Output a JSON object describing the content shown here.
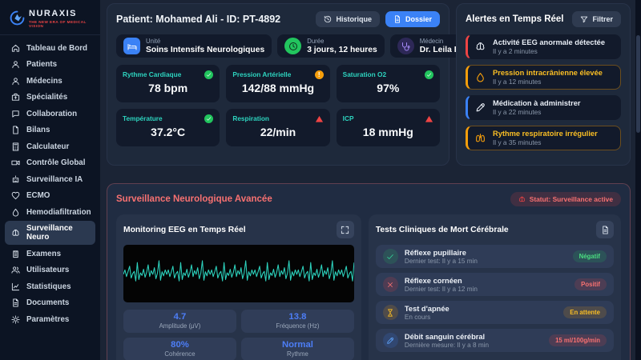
{
  "brand": {
    "name": "NURAXIS",
    "tagline": "THE NEW ERA OF MEDICAL VISION"
  },
  "sidebar": {
    "items": [
      {
        "label": "Tableau de Bord",
        "icon": "home",
        "active": false
      },
      {
        "label": "Patients",
        "icon": "user",
        "active": false
      },
      {
        "label": "Médecins",
        "icon": "user",
        "active": false
      },
      {
        "label": "Spécialités",
        "icon": "kit",
        "active": false
      },
      {
        "label": "Collaboration",
        "icon": "chat",
        "active": false
      },
      {
        "label": "Bilans",
        "icon": "file",
        "active": false
      },
      {
        "label": "Calculateur",
        "icon": "calculator",
        "active": false
      },
      {
        "label": "Contrôle Global",
        "icon": "video",
        "active": false
      },
      {
        "label": "Surveillance IA",
        "icon": "robot",
        "active": false
      },
      {
        "label": "ECMO",
        "icon": "heart",
        "active": false
      },
      {
        "label": "Hemodiafiltration",
        "icon": "droplet",
        "active": false
      },
      {
        "label": "Surveillance Neuro",
        "icon": "brain",
        "active": true
      },
      {
        "label": "Examens",
        "icon": "clipboard",
        "active": false
      },
      {
        "label": "Utilisateurs",
        "icon": "users",
        "active": false
      },
      {
        "label": "Statistiques",
        "icon": "chart",
        "active": false
      },
      {
        "label": "Documents",
        "icon": "document",
        "active": false
      },
      {
        "label": "Paramètres",
        "icon": "gear",
        "active": false
      }
    ]
  },
  "patient": {
    "title": "Patient: Mohamed Ali - ID: PT-4892",
    "buttons": {
      "history": "Historique",
      "dossier": "Dossier"
    },
    "info": [
      {
        "label": "Unité",
        "value": "Soins Intensifs Neurologiques",
        "icon": "bed"
      },
      {
        "label": "Durée",
        "value": "3 jours, 12 heures",
        "icon": "clock"
      },
      {
        "label": "Médecin",
        "value": "Dr. Leila Ben Ahmed",
        "icon": "stethoscope"
      }
    ],
    "vitals": [
      {
        "label": "Rythme Cardiaque",
        "value": "78 bpm",
        "status": "ok"
      },
      {
        "label": "Pression Artérielle",
        "value": "142/88 mmHg",
        "status": "warn"
      },
      {
        "label": "Saturation O2",
        "value": "97%",
        "status": "ok"
      },
      {
        "label": "Température",
        "value": "37.2°C",
        "status": "ok"
      },
      {
        "label": "Respiration",
        "value": "22/min",
        "status": "alert"
      },
      {
        "label": "ICP",
        "value": "18 mmHg",
        "status": "alert"
      }
    ]
  },
  "alerts": {
    "title": "Alertes en Temps Réel",
    "filter_label": "Filtrer",
    "items": [
      {
        "title": "Activité EEG anormale détectée",
        "time": "Il y a 2 minutes",
        "severity": "critical",
        "icon": "brain"
      },
      {
        "title": "Pression intracrânienne élevée",
        "time": "Il y a 12 minutes",
        "severity": "warning",
        "icon": "droplet"
      },
      {
        "title": "Médication à administrer",
        "time": "Il y a 22 minutes",
        "severity": "info",
        "icon": "pen"
      },
      {
        "title": "Rythme respiratoire irrégulier",
        "time": "Il y a 35 minutes",
        "severity": "warning",
        "icon": "lungs"
      }
    ]
  },
  "neuro": {
    "title": "Surveillance Neurologique Avancée",
    "status_badge": "Statut: Surveillance active",
    "eeg": {
      "title": "Monitoring EEG en Temps Réel",
      "stats": [
        {
          "value": "4.7",
          "label": "Amplitude (μV)"
        },
        {
          "value": "13.8",
          "label": "Fréquence (Hz)"
        },
        {
          "value": "80%",
          "label": "Cohérence"
        },
        {
          "value": "Normal",
          "label": "Rythme"
        }
      ]
    },
    "tests": {
      "title": "Tests Cliniques de Mort Cérébrale",
      "items": [
        {
          "title": "Réflexe pupillaire",
          "subtitle": "Dernier test: Il y a 15 min",
          "badge": "Négatif",
          "tone": "green",
          "icon": "check"
        },
        {
          "title": "Réflexe cornéen",
          "subtitle": "Dernier test: Il y a 12 min",
          "badge": "Positif",
          "tone": "red",
          "icon": "cross"
        },
        {
          "title": "Test d'apnée",
          "subtitle": "En cours",
          "badge": "En attente",
          "tone": "orange",
          "icon": "hourglass"
        },
        {
          "title": "Débit sanguin cérébral",
          "subtitle": "Dernière mesure: Il y a 8 min",
          "badge": "15 ml/100g/min",
          "tone": "red",
          "icon": "pen"
        }
      ]
    }
  },
  "chart_data": {
    "type": "line",
    "title": "Monitoring EEG en Temps Réel",
    "xlabel": "",
    "ylabel": "",
    "grid": false,
    "legend": false,
    "series": [
      {
        "name": "EEG",
        "color": "#2dd4bf",
        "pattern_normalized": [
          0.52,
          0.4,
          0.58,
          0.45,
          0.3,
          0.62,
          0.5,
          0.44,
          0.7,
          0.2,
          0.66,
          0.48,
          0.55,
          0.38,
          0.6,
          0.47,
          0.26,
          0.58,
          0.42,
          0.52,
          0.34,
          0.64,
          0.49,
          0.15,
          0.68,
          0.45,
          0.56,
          0.4
        ]
      }
    ],
    "readouts": {
      "amplitude_uv": 4.7,
      "frequency_hz": 13.8,
      "coherence_pct": 80,
      "rhythm": "Normal"
    }
  },
  "colors": {
    "accent_blue": "#3b82f6",
    "teal": "#2dd4bf",
    "critical": "#ef4444",
    "warning": "#f59e0b",
    "success": "#22c55e",
    "section_red": "#f87171",
    "stat_blue": "#4d7ef7"
  }
}
